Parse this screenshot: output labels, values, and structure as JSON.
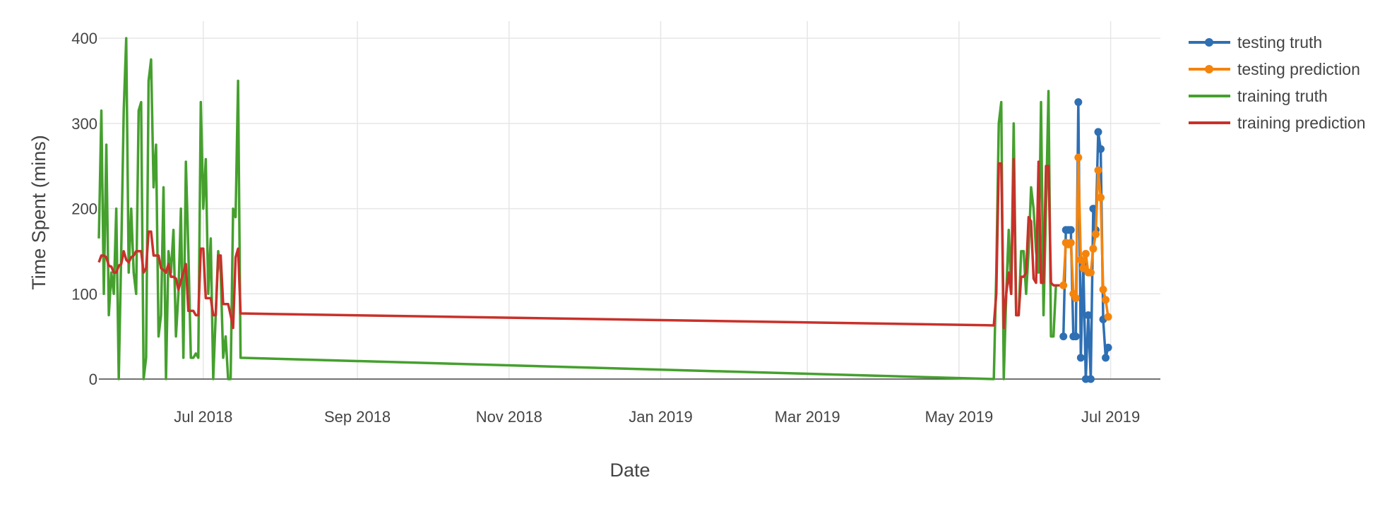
{
  "chart_data": {
    "type": "line",
    "title": "",
    "xlabel": "Date",
    "ylabel": "Time Spent (mins)",
    "ylim": [
      0,
      420
    ],
    "xlim": [
      "2018-05-20",
      "2019-07-21"
    ],
    "grid": true,
    "legend_position": "top-right",
    "x_ticks": [
      {
        "date": "2018-07-01",
        "label": "Jul 2018"
      },
      {
        "date": "2018-09-01",
        "label": "Sep 2018"
      },
      {
        "date": "2018-11-01",
        "label": "Nov 2018"
      },
      {
        "date": "2019-01-01",
        "label": "Jan 2019"
      },
      {
        "date": "2019-03-01",
        "label": "Mar 2019"
      },
      {
        "date": "2019-05-01",
        "label": "May 2019"
      },
      {
        "date": "2019-07-01",
        "label": "Jul 2019"
      }
    ],
    "y_ticks": [
      0,
      100,
      200,
      300,
      400
    ],
    "series": [
      {
        "name": "testing truth",
        "color": "#2f6fb3",
        "markers": true,
        "points": [
          [
            "2019-06-12",
            50
          ],
          [
            "2019-06-13",
            175
          ],
          [
            "2019-06-14",
            175
          ],
          [
            "2019-06-15",
            175
          ],
          [
            "2019-06-16",
            50
          ],
          [
            "2019-06-17",
            50
          ],
          [
            "2019-06-18",
            325
          ],
          [
            "2019-06-19",
            25
          ],
          [
            "2019-06-20",
            135
          ],
          [
            "2019-06-21",
            0
          ],
          [
            "2019-06-22",
            75
          ],
          [
            "2019-06-23",
            0
          ],
          [
            "2019-06-24",
            200
          ],
          [
            "2019-06-25",
            175
          ],
          [
            "2019-06-26",
            290
          ],
          [
            "2019-06-27",
            270
          ],
          [
            "2019-06-28",
            70
          ],
          [
            "2019-06-29",
            25
          ],
          [
            "2019-06-30",
            37
          ]
        ]
      },
      {
        "name": "testing prediction",
        "color": "#f5840c",
        "markers": true,
        "points": [
          [
            "2019-06-12",
            110
          ],
          [
            "2019-06-13",
            160
          ],
          [
            "2019-06-14",
            158
          ],
          [
            "2019-06-15",
            160
          ],
          [
            "2019-06-16",
            100
          ],
          [
            "2019-06-17",
            95
          ],
          [
            "2019-06-18",
            260
          ],
          [
            "2019-06-19",
            140
          ],
          [
            "2019-06-20",
            130
          ],
          [
            "2019-06-21",
            147
          ],
          [
            "2019-06-22",
            125
          ],
          [
            "2019-06-23",
            125
          ],
          [
            "2019-06-24",
            153
          ],
          [
            "2019-06-25",
            170
          ],
          [
            "2019-06-26",
            245
          ],
          [
            "2019-06-27",
            213
          ],
          [
            "2019-06-28",
            105
          ],
          [
            "2019-06-29",
            93
          ],
          [
            "2019-06-30",
            73
          ]
        ]
      },
      {
        "name": "training truth",
        "color": "#45a02e",
        "markers": false,
        "points": [
          [
            "2018-05-20",
            165
          ],
          [
            "2018-05-21",
            315
          ],
          [
            "2018-05-22",
            100
          ],
          [
            "2018-05-23",
            275
          ],
          [
            "2018-05-24",
            75
          ],
          [
            "2018-05-25",
            125
          ],
          [
            "2018-05-26",
            100
          ],
          [
            "2018-05-27",
            200
          ],
          [
            "2018-05-28",
            0
          ],
          [
            "2018-05-29",
            150
          ],
          [
            "2018-05-30",
            315
          ],
          [
            "2018-05-31",
            400
          ],
          [
            "2018-06-01",
            125
          ],
          [
            "2018-06-02",
            200
          ],
          [
            "2018-06-03",
            125
          ],
          [
            "2018-06-04",
            100
          ],
          [
            "2018-06-05",
            315
          ],
          [
            "2018-06-06",
            325
          ],
          [
            "2018-06-07",
            0
          ],
          [
            "2018-06-08",
            25
          ],
          [
            "2018-06-09",
            350
          ],
          [
            "2018-06-10",
            375
          ],
          [
            "2018-06-11",
            225
          ],
          [
            "2018-06-12",
            275
          ],
          [
            "2018-06-13",
            50
          ],
          [
            "2018-06-14",
            75
          ],
          [
            "2018-06-15",
            225
          ],
          [
            "2018-06-16",
            0
          ],
          [
            "2018-06-17",
            150
          ],
          [
            "2018-06-18",
            125
          ],
          [
            "2018-06-19",
            175
          ],
          [
            "2018-06-20",
            50
          ],
          [
            "2018-06-21",
            100
          ],
          [
            "2018-06-22",
            200
          ],
          [
            "2018-06-23",
            25
          ],
          [
            "2018-06-24",
            255
          ],
          [
            "2018-06-25",
            150
          ],
          [
            "2018-06-26",
            25
          ],
          [
            "2018-06-27",
            25
          ],
          [
            "2018-06-28",
            30
          ],
          [
            "2018-06-29",
            25
          ],
          [
            "2018-06-30",
            325
          ],
          [
            "2018-07-01",
            200
          ],
          [
            "2018-07-02",
            258
          ],
          [
            "2018-07-03",
            100
          ],
          [
            "2018-07-04",
            165
          ],
          [
            "2018-07-05",
            0
          ],
          [
            "2018-07-06",
            75
          ],
          [
            "2018-07-07",
            150
          ],
          [
            "2018-07-08",
            125
          ],
          [
            "2018-07-09",
            25
          ],
          [
            "2018-07-10",
            50
          ],
          [
            "2018-07-11",
            0
          ],
          [
            "2018-07-12",
            0
          ],
          [
            "2018-07-13",
            200
          ],
          [
            "2018-07-14",
            190
          ],
          [
            "2018-07-15",
            350
          ],
          [
            "2018-07-16",
            25
          ],
          [
            "2019-05-15",
            0
          ],
          [
            "2019-05-16",
            125
          ],
          [
            "2019-05-17",
            300
          ],
          [
            "2019-05-18",
            325
          ],
          [
            "2019-05-19",
            0
          ],
          [
            "2019-05-20",
            100
          ],
          [
            "2019-05-21",
            175
          ],
          [
            "2019-05-22",
            100
          ],
          [
            "2019-05-23",
            300
          ],
          [
            "2019-05-24",
            75
          ],
          [
            "2019-05-25",
            75
          ],
          [
            "2019-05-26",
            150
          ],
          [
            "2019-05-27",
            150
          ],
          [
            "2019-05-28",
            100
          ],
          [
            "2019-05-29",
            150
          ],
          [
            "2019-05-30",
            225
          ],
          [
            "2019-05-31",
            200
          ],
          [
            "2019-06-01",
            150
          ],
          [
            "2019-06-02",
            125
          ],
          [
            "2019-06-03",
            325
          ],
          [
            "2019-06-04",
            75
          ],
          [
            "2019-06-05",
            200
          ],
          [
            "2019-06-06",
            338
          ],
          [
            "2019-06-07",
            50
          ],
          [
            "2019-06-08",
            50
          ],
          [
            "2019-06-09",
            110
          ],
          [
            "2019-06-10",
            110
          ],
          [
            "2019-06-11",
            110
          ]
        ]
      },
      {
        "name": "training prediction",
        "color": "#c8312a",
        "markers": false,
        "points": [
          [
            "2018-05-20",
            137
          ],
          [
            "2018-05-21",
            145
          ],
          [
            "2018-05-22",
            145
          ],
          [
            "2018-05-23",
            143
          ],
          [
            "2018-05-24",
            133
          ],
          [
            "2018-05-25",
            132
          ],
          [
            "2018-05-26",
            125
          ],
          [
            "2018-05-27",
            125
          ],
          [
            "2018-05-28",
            133
          ],
          [
            "2018-05-29",
            135
          ],
          [
            "2018-05-30",
            150
          ],
          [
            "2018-05-31",
            140
          ],
          [
            "2018-06-01",
            137
          ],
          [
            "2018-06-02",
            143
          ],
          [
            "2018-06-03",
            145
          ],
          [
            "2018-06-04",
            150
          ],
          [
            "2018-06-05",
            150
          ],
          [
            "2018-06-06",
            150
          ],
          [
            "2018-06-07",
            125
          ],
          [
            "2018-06-08",
            130
          ],
          [
            "2018-06-09",
            173
          ],
          [
            "2018-06-10",
            173
          ],
          [
            "2018-06-11",
            145
          ],
          [
            "2018-06-12",
            145
          ],
          [
            "2018-06-13",
            145
          ],
          [
            "2018-06-14",
            130
          ],
          [
            "2018-06-15",
            128
          ],
          [
            "2018-06-16",
            125
          ],
          [
            "2018-06-17",
            135
          ],
          [
            "2018-06-18",
            120
          ],
          [
            "2018-06-19",
            120
          ],
          [
            "2018-06-20",
            118
          ],
          [
            "2018-06-21",
            105
          ],
          [
            "2018-06-22",
            115
          ],
          [
            "2018-06-23",
            125
          ],
          [
            "2018-06-24",
            135
          ],
          [
            "2018-06-25",
            80
          ],
          [
            "2018-06-26",
            80
          ],
          [
            "2018-06-27",
            80
          ],
          [
            "2018-06-28",
            75
          ],
          [
            "2018-06-29",
            75
          ],
          [
            "2018-06-30",
            153
          ],
          [
            "2018-07-01",
            153
          ],
          [
            "2018-07-02",
            95
          ],
          [
            "2018-07-03",
            95
          ],
          [
            "2018-07-04",
            95
          ],
          [
            "2018-07-05",
            75
          ],
          [
            "2018-07-06",
            75
          ],
          [
            "2018-07-07",
            145
          ],
          [
            "2018-07-08",
            145
          ],
          [
            "2018-07-09",
            88
          ],
          [
            "2018-07-10",
            88
          ],
          [
            "2018-07-11",
            88
          ],
          [
            "2018-07-12",
            75
          ],
          [
            "2018-07-13",
            60
          ],
          [
            "2018-07-14",
            143
          ],
          [
            "2018-07-15",
            153
          ],
          [
            "2018-07-16",
            77
          ],
          [
            "2019-05-15",
            63
          ],
          [
            "2019-05-16",
            100
          ],
          [
            "2019-05-17",
            253
          ],
          [
            "2019-05-18",
            253
          ],
          [
            "2019-05-19",
            60
          ],
          [
            "2019-05-20",
            100
          ],
          [
            "2019-05-21",
            125
          ],
          [
            "2019-05-22",
            100
          ],
          [
            "2019-05-23",
            258
          ],
          [
            "2019-05-24",
            75
          ],
          [
            "2019-05-25",
            75
          ],
          [
            "2019-05-26",
            120
          ],
          [
            "2019-05-27",
            120
          ],
          [
            "2019-05-28",
            125
          ],
          [
            "2019-05-29",
            190
          ],
          [
            "2019-05-30",
            185
          ],
          [
            "2019-05-31",
            118
          ],
          [
            "2019-06-01",
            113
          ],
          [
            "2019-06-02",
            255
          ],
          [
            "2019-06-03",
            113
          ],
          [
            "2019-06-04",
            113
          ],
          [
            "2019-06-05",
            250
          ],
          [
            "2019-06-06",
            250
          ],
          [
            "2019-06-07",
            113
          ],
          [
            "2019-06-08",
            110
          ],
          [
            "2019-06-09",
            110
          ],
          [
            "2019-06-10",
            110
          ],
          [
            "2019-06-11",
            110
          ]
        ]
      }
    ]
  }
}
